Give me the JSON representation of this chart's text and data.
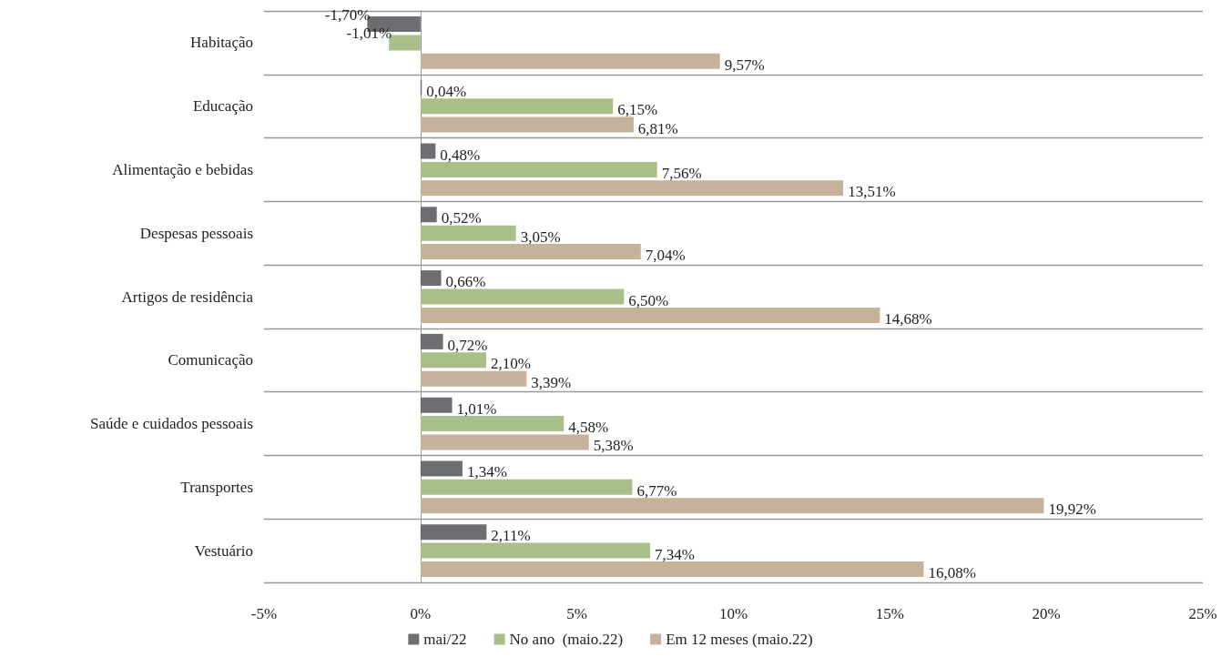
{
  "chart_data": {
    "type": "bar",
    "orientation": "horizontal",
    "categories": [
      "Habitação",
      "Educação",
      "Alimentação e bebidas",
      "Despesas pessoais",
      "Artigos de residência",
      "Comunicação",
      "Saúde e cuidados pessoais",
      "Transportes",
      "Vestuário"
    ],
    "series": [
      {
        "name": "mai/22",
        "color": "#6d6e71",
        "values": [
          -1.7,
          0.04,
          0.48,
          0.52,
          0.66,
          0.72,
          1.01,
          1.34,
          2.11
        ],
        "value_labels": [
          "-1,70%",
          "0,04%",
          "0,48%",
          "0,52%",
          "0,66%",
          "0,72%",
          "1,01%",
          "1,34%",
          "2,11%"
        ]
      },
      {
        "name": "No ano  (maio.22)",
        "color": "#a9bf8a",
        "values": [
          -1.01,
          6.15,
          7.56,
          3.05,
          6.5,
          2.1,
          4.58,
          6.77,
          7.34
        ],
        "value_labels": [
          "-1,01%",
          "6,15%",
          "7,56%",
          "3,05%",
          "6,50%",
          "2,10%",
          "4,58%",
          "6,77%",
          "7,34%"
        ]
      },
      {
        "name": "Em 12 meses (maio.22)",
        "color": "#c4b29b",
        "values": [
          9.57,
          6.81,
          13.51,
          7.04,
          14.68,
          3.39,
          5.38,
          19.92,
          16.08
        ],
        "value_labels": [
          "9,57%",
          "6,81%",
          "13,51%",
          "7,04%",
          "14,68%",
          "3,39%",
          "5,38%",
          "19,92%",
          "16,08%"
        ]
      }
    ],
    "xlim": [
      -5,
      25
    ],
    "xticks": [
      {
        "value": -5,
        "label": "-5%"
      },
      {
        "value": 0,
        "label": "0%"
      },
      {
        "value": 5,
        "label": "5%"
      },
      {
        "value": 10,
        "label": "10%"
      },
      {
        "value": 15,
        "label": "15%"
      },
      {
        "value": 20,
        "label": "20%"
      },
      {
        "value": 25,
        "label": "25%"
      }
    ],
    "grid": "y",
    "legend": "bottom"
  }
}
